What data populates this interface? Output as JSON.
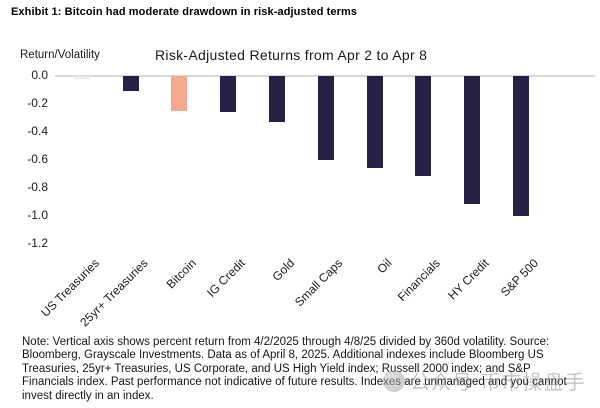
{
  "exhibit": {
    "title": "Exhibit 1: Bitcoin had moderate drawdown in risk-adjusted terms"
  },
  "chart": {
    "y_axis_label": "Return/Volatility",
    "title": "Risk-Adjusted Returns from Apr 2 to Apr 8"
  },
  "chart_data": {
    "type": "bar",
    "title": "Risk-Adjusted Returns from Apr 2 to Apr 8",
    "xlabel": "",
    "ylabel": "Return/Volatility",
    "categories": [
      "US Treasuries",
      "25yr+ Treasuries",
      "Bitcoin",
      "IG Credit",
      "Gold",
      "Small Caps",
      "Oil",
      "Financials",
      "HY Credit",
      "S&P 500"
    ],
    "values": [
      0.0,
      -0.11,
      -0.25,
      -0.26,
      -0.33,
      -0.6,
      -0.66,
      -0.72,
      -0.92,
      -1.0
    ],
    "y_tick_labels": [
      "0.0",
      "-0.2",
      "-0.4",
      "-0.6",
      "-0.8",
      "-1.0",
      "-1.2"
    ],
    "ylim": [
      -1.2,
      0.05
    ],
    "grid": false,
    "legend": "none",
    "highlight_category": "Bitcoin",
    "colors": {
      "bar_default": "#272046",
      "bar_highlight": "#F3AA90",
      "bar_near_zero": "#EBE8F0",
      "axis_line": "#D9D9D9"
    }
  },
  "note": {
    "lines": [
      "Note: Vertical axis shows percent return from 4/2/2025 through 4/8/25 divided by 360d volatility. Source:",
      "Bloomberg, Grayscale Investments. Data as of April 8, 2025. Additional indexes include Bloomberg US",
      "Treasuries, 25yr+ Treasuries, US Corporate, and US High Yield index; Russell 2000 index; and S&P",
      "Financials index. Past performance not indicative of future results. Indexes are unmanaged and you cannot",
      "invest directly in an index."
    ]
  },
  "watermark": {
    "icon": "circle-logo-icon",
    "text": "公众号·币市操盘手"
  }
}
